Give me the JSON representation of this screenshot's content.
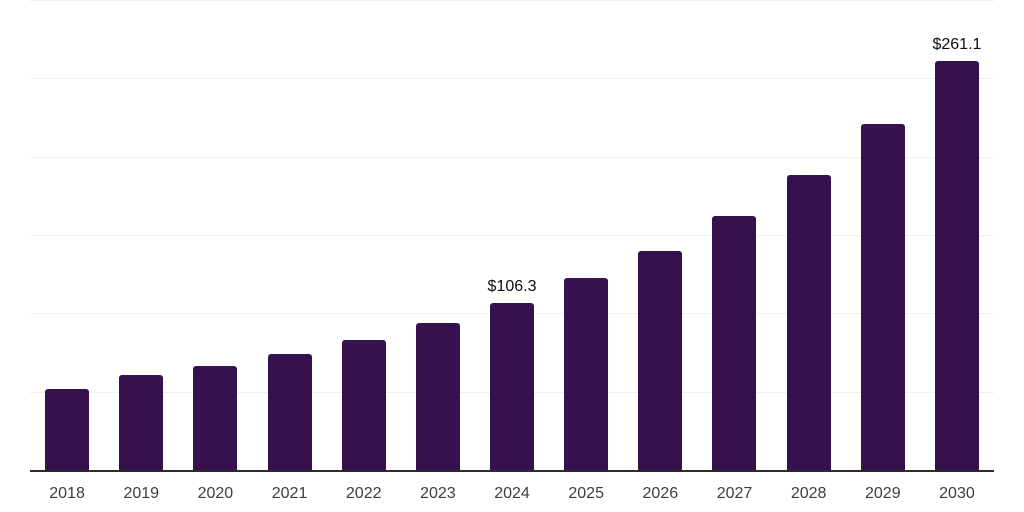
{
  "chart_data": {
    "type": "bar",
    "title": "",
    "xlabel": "",
    "ylabel": "",
    "categories": [
      "2018",
      "2019",
      "2020",
      "2021",
      "2022",
      "2023",
      "2024",
      "2025",
      "2026",
      "2027",
      "2028",
      "2029",
      "2030"
    ],
    "values": [
      52.0,
      60.7,
      66.6,
      74.3,
      83.2,
      94.0,
      106.3,
      122.4,
      139.7,
      162.0,
      188.0,
      221.1,
      261.1
    ],
    "annotations": [
      {
        "category": "2024",
        "text": "$106.3"
      },
      {
        "category": "2030",
        "text": "$261.1"
      }
    ],
    "value_prefix": "$",
    "ylim": [
      0,
      300
    ],
    "gridline_values": [
      50,
      100,
      150,
      200,
      250,
      300
    ],
    "grid": "horizontal-only",
    "legend": "none",
    "y_axis_ticks_visible": false,
    "colors": {
      "bar": "#36114E",
      "grid": "#efeff1",
      "axis_line": "#2b2b2b",
      "tick_label": "#3d3d3d",
      "data_label": "#0e0e0e",
      "background": "#ffffff"
    }
  }
}
